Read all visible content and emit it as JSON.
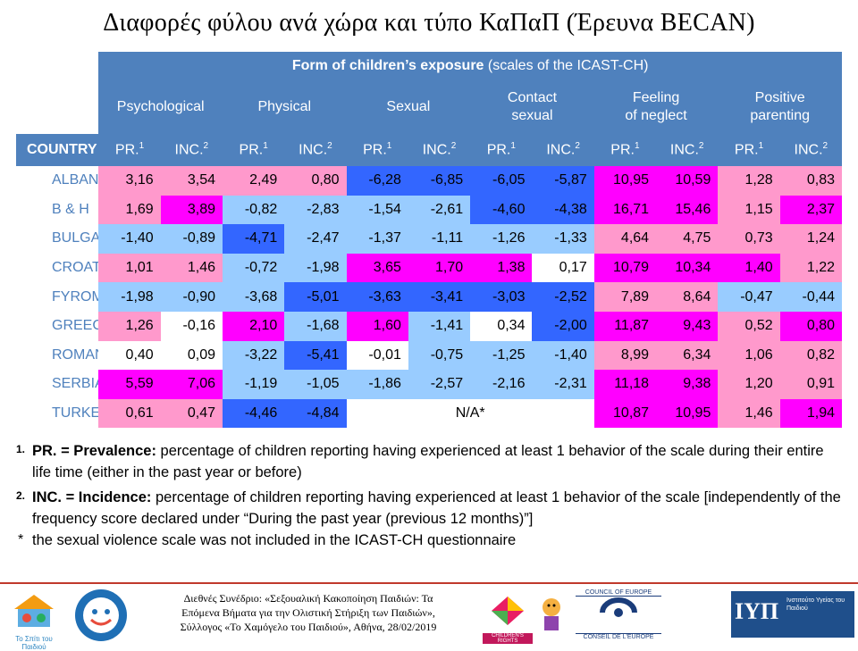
{
  "title": "Διαφορές φύλου ανά χώρα και τύπο ΚαΠαΠ (Έρευνα BECAN)",
  "table": {
    "top_header_bold": "Form of children’s exposure",
    "top_header_light": "(scales of the ICAST-CH)",
    "country_header": "COUNTRY",
    "categories": [
      {
        "line1": "Psychological",
        "line2": ""
      },
      {
        "line1": "Physical",
        "line2": ""
      },
      {
        "line1": "Sexual",
        "line2": ""
      },
      {
        "line1": "Contact",
        "line2": "sexual"
      },
      {
        "line1": "Feeling",
        "line2": "of neglect"
      },
      {
        "line1": "Positive",
        "line2": "parenting"
      }
    ],
    "sub_pr": "PR.",
    "sub_pr_sup": "1",
    "sub_inc": "INC.",
    "sub_inc_sup": "2",
    "na_text": "N/A*",
    "rows": [
      {
        "country": "ALBANIA",
        "values": [
          "3,16",
          "3,54",
          "2,49",
          "0,80",
          "-6,28",
          "-6,85",
          "-6,05",
          "-5,87",
          "10,95",
          "10,59",
          "1,28",
          "0,83"
        ],
        "colors": [
          "#ff99cc",
          "#ff99cc",
          "#ff99cc",
          "#ff99cc",
          "#3366ff",
          "#3366ff",
          "#3366ff",
          "#3366ff",
          "#ff00ff",
          "#ff00ff",
          "#ff99cc",
          "#ff99cc"
        ]
      },
      {
        "country": "B & H",
        "values": [
          "1,69",
          "3,89",
          "-0,82",
          "-2,83",
          "-1,54",
          "-2,61",
          "-4,60",
          "-4,38",
          "16,71",
          "15,46",
          "1,15",
          "2,37"
        ],
        "colors": [
          "#ff99cc",
          "#ff00ff",
          "#99ccff",
          "#99ccff",
          "#99ccff",
          "#99ccff",
          "#3366ff",
          "#3366ff",
          "#ff00ff",
          "#ff00ff",
          "#ff99cc",
          "#ff00ff"
        ]
      },
      {
        "country": "BULGARIA",
        "values": [
          "-1,40",
          "-0,89",
          "-4,71",
          "-2,47",
          "-1,37",
          "-1,11",
          "-1,26",
          "-1,33",
          "4,64",
          "4,75",
          "0,73",
          "1,24"
        ],
        "colors": [
          "#99ccff",
          "#99ccff",
          "#3366ff",
          "#99ccff",
          "#99ccff",
          "#99ccff",
          "#99ccff",
          "#99ccff",
          "#ff99cc",
          "#ff99cc",
          "#ff99cc",
          "#ff99cc"
        ]
      },
      {
        "country": "CROATIA",
        "values": [
          "1,01",
          "1,46",
          "-0,72",
          "-1,98",
          "3,65",
          "1,70",
          "1,38",
          "0,17",
          "10,79",
          "10,34",
          "1,40",
          "1,22"
        ],
        "colors": [
          "#ff99cc",
          "#ff99cc",
          "#99ccff",
          "#99ccff",
          "#ff00ff",
          "#ff00ff",
          "#ff00ff",
          "#ffffff",
          "#ff00ff",
          "#ff00ff",
          "#ff00ff",
          "#ff99cc"
        ]
      },
      {
        "country": "FYROM",
        "values": [
          "-1,98",
          "-0,90",
          "-3,68",
          "-5,01",
          "-3,63",
          "-3,41",
          "-3,03",
          "-2,52",
          "7,89",
          "8,64",
          "-0,47",
          "-0,44"
        ],
        "colors": [
          "#99ccff",
          "#99ccff",
          "#99ccff",
          "#3366ff",
          "#3366ff",
          "#3366ff",
          "#3366ff",
          "#3366ff",
          "#ff99cc",
          "#ff99cc",
          "#99ccff",
          "#99ccff"
        ]
      },
      {
        "country": "GREECE",
        "values": [
          "1,26",
          "-0,16",
          "2,10",
          "-1,68",
          "1,60",
          "-1,41",
          "0,34",
          "-2,00",
          "11,87",
          "9,43",
          "0,52",
          "0,80"
        ],
        "colors": [
          "#ff99cc",
          "#ffffff",
          "#ff00ff",
          "#99ccff",
          "#ff00ff",
          "#99ccff",
          "#ffffff",
          "#3366ff",
          "#ff00ff",
          "#ff00ff",
          "#ff99cc",
          "#ff00ff"
        ]
      },
      {
        "country": "ROMANIA",
        "values": [
          "0,40",
          "0,09",
          "-3,22",
          "-5,41",
          "-0,01",
          "-0,75",
          "-1,25",
          "-1,40",
          "8,99",
          "6,34",
          "1,06",
          "0,82"
        ],
        "colors": [
          "#ffffff",
          "#ffffff",
          "#99ccff",
          "#3366ff",
          "#ffffff",
          "#99ccff",
          "#99ccff",
          "#99ccff",
          "#ff99cc",
          "#ff99cc",
          "#ff99cc",
          "#ff99cc"
        ]
      },
      {
        "country": "SERBIA",
        "values": [
          "5,59",
          "7,06",
          "-1,19",
          "-1,05",
          "-1,86",
          "-2,57",
          "-2,16",
          "-2,31",
          "11,18",
          "9,38",
          "1,20",
          "0,91"
        ],
        "colors": [
          "#ff00ff",
          "#ff00ff",
          "#99ccff",
          "#99ccff",
          "#99ccff",
          "#99ccff",
          "#99ccff",
          "#99ccff",
          "#ff00ff",
          "#ff00ff",
          "#ff99cc",
          "#ff99cc"
        ]
      },
      {
        "country": "TURKEY",
        "values": [
          "0,61",
          "0,47",
          "-4,46",
          "-4,84",
          "",
          "",
          "",
          "",
          "10,87",
          "10,95",
          "1,46",
          "1,94"
        ],
        "colors": [
          "#ff99cc",
          "#ff99cc",
          "#3366ff",
          "#3366ff",
          "#ffffff",
          "#ffffff",
          "#ffffff",
          "#ffffff",
          "#ff00ff",
          "#ff00ff",
          "#ff99cc",
          "#ff00ff"
        ]
      }
    ]
  },
  "notes": [
    {
      "mark": "1.",
      "term": "PR. = Prevalence:",
      "text": " percentage of children reporting having experienced at least 1 behavior of the scale during their entire life time (either in the past year or before)"
    },
    {
      "mark": "2.",
      "term": "INC. = Incidence:",
      "text": " percentage of children reporting having experienced at least 1 behavior of the scale [independently of the frequency score declared under “During the past year (previous 12 months)”]"
    },
    {
      "mark": "*",
      "term": "",
      "text": "the sexual violence scale was not included in the ICAST-CH questionnaire"
    }
  ],
  "footer": {
    "conference_line1": "Διεθνές Συνέδριο: «Σεξουαλική Κακοποίηση Παιδιών: Τα",
    "conference_line2": "Επόμενα Βήματα για την Ολιστική Στήριξη των Παιδιών»,",
    "conference_line3": "Σύλλογος «Το Χαμόγελο του Παιδιού», Αθήνα, 28/02/2019",
    "logo_spiti": "Το Σπίτι του Παιδιού",
    "logo_xamogelo": "Το Χαμόγελο του Παιδιού",
    "logo_childrens_rights": "CHILDREN'S RIGHTS",
    "logo_coe_en": "COUNCIL OF EUROPE",
    "logo_coe_fr": "CONSEIL DE L'EUROPE",
    "logo_iyp": "Ινστιτούτο Υγείας του Παιδιού"
  }
}
